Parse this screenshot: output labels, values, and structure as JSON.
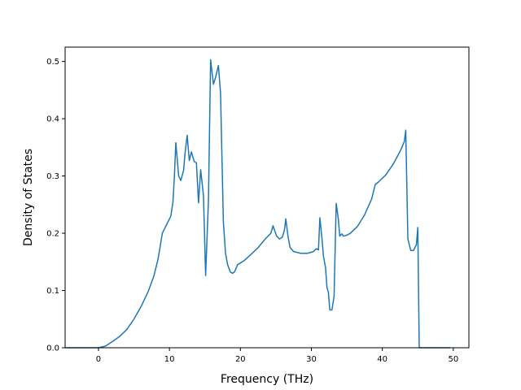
{
  "chart_data": {
    "type": "line",
    "title": "",
    "xlabel": "Frequency (THz)",
    "ylabel": "Density of States",
    "xlim": [
      -4.7,
      52.2
    ],
    "ylim": [
      0.0,
      0.525
    ],
    "xticks": [
      0,
      10,
      20,
      30,
      40,
      50
    ],
    "yticks": [
      0.0,
      0.1,
      0.2,
      0.3,
      0.4,
      0.5
    ],
    "xtick_labels": [
      "0",
      "10",
      "20",
      "30",
      "40",
      "50"
    ],
    "ytick_labels": [
      "0.0",
      "0.1",
      "0.2",
      "0.3",
      "0.4",
      "0.5"
    ],
    "grid": false,
    "legend": "none",
    "series": [
      {
        "color": "#1f77b4",
        "x": [
          -4.6,
          0.0,
          1.0,
          2.0,
          3.0,
          4.0,
          5.0,
          6.0,
          7.0,
          7.8,
          8.4,
          9.0,
          9.6,
          10.2,
          10.5,
          10.7,
          10.9,
          11.3,
          11.6,
          12.0,
          12.2,
          12.5,
          12.8,
          13.1,
          13.5,
          13.8,
          14.1,
          14.4,
          14.8,
          15.1,
          15.5,
          15.8,
          16.2,
          16.5,
          16.9,
          17.2,
          17.6,
          17.9,
          18.2,
          18.6,
          18.9,
          19.2,
          19.6,
          20.5,
          21.5,
          22.5,
          23.5,
          24.3,
          24.6,
          25.1,
          25.5,
          25.9,
          26.2,
          26.4,
          26.7,
          27.0,
          27.5,
          28.5,
          29.5,
          30.3,
          30.7,
          31.0,
          31.2,
          31.5,
          31.7,
          32.0,
          32.2,
          32.4,
          32.6,
          32.9,
          33.2,
          33.5,
          33.8,
          34.0,
          34.3,
          34.5,
          34.9,
          35.5,
          36.5,
          37.5,
          38.5,
          39.0,
          39.5,
          40.5,
          41.5,
          42.5,
          43.1,
          43.3,
          43.6,
          44.0,
          44.4,
          44.8,
          45.0,
          45.2,
          45.7,
          49.6
        ],
        "y": [
          0.0,
          0.0,
          0.003,
          0.011,
          0.02,
          0.032,
          0.05,
          0.072,
          0.098,
          0.125,
          0.155,
          0.2,
          0.215,
          0.23,
          0.255,
          0.3,
          0.358,
          0.3,
          0.292,
          0.31,
          0.34,
          0.371,
          0.327,
          0.342,
          0.325,
          0.323,
          0.253,
          0.311,
          0.265,
          0.126,
          0.258,
          0.503,
          0.46,
          0.472,
          0.493,
          0.445,
          0.22,
          0.165,
          0.145,
          0.132,
          0.13,
          0.133,
          0.145,
          0.152,
          0.163,
          0.175,
          0.19,
          0.2,
          0.213,
          0.195,
          0.19,
          0.193,
          0.205,
          0.225,
          0.195,
          0.175,
          0.168,
          0.165,
          0.165,
          0.168,
          0.173,
          0.171,
          0.227,
          0.19,
          0.16,
          0.14,
          0.105,
          0.097,
          0.066,
          0.066,
          0.09,
          0.252,
          0.225,
          0.195,
          0.199,
          0.195,
          0.196,
          0.2,
          0.212,
          0.232,
          0.26,
          0.285,
          0.29,
          0.302,
          0.32,
          0.343,
          0.36,
          0.38,
          0.19,
          0.17,
          0.17,
          0.18,
          0.21,
          0.0,
          0.0,
          0.0
        ]
      }
    ]
  }
}
